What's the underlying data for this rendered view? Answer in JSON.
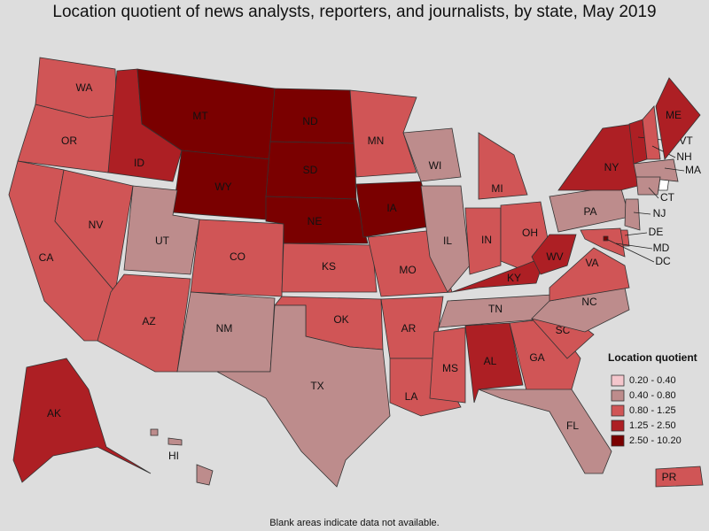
{
  "title": "Location quotient of news analysts, reporters, and journalists, by state, May 2019",
  "legend": {
    "title": "Location quotient",
    "entries": [
      {
        "label": "0.20 - 0.40",
        "color": "#f4c6cc"
      },
      {
        "label": "0.40 - 0.80",
        "color": "#bd8c8c"
      },
      {
        "label": "0.80 - 1.25",
        "color": "#d05556"
      },
      {
        "label": "1.25 - 2.50",
        "color": "#ad1f24"
      },
      {
        "label": "2.50 - 10.20",
        "color": "#7a0000"
      }
    ]
  },
  "states": [
    {
      "label": "WA",
      "color": "#d05556"
    },
    {
      "label": "OR",
      "color": "#d05556"
    },
    {
      "label": "CA",
      "color": "#d05556"
    },
    {
      "label": "NV",
      "color": "#d05556"
    },
    {
      "label": "ID",
      "color": "#ad1f24"
    },
    {
      "label": "MT",
      "color": "#7a0000"
    },
    {
      "label": "WY",
      "color": "#7a0000"
    },
    {
      "label": "UT",
      "color": "#bd8c8c"
    },
    {
      "label": "CO",
      "color": "#d05556"
    },
    {
      "label": "AZ",
      "color": "#d05556"
    },
    {
      "label": "NM",
      "color": "#bd8c8c"
    },
    {
      "label": "ND",
      "color": "#7a0000"
    },
    {
      "label": "SD",
      "color": "#7a0000"
    },
    {
      "label": "NE",
      "color": "#7a0000"
    },
    {
      "label": "KS",
      "color": "#d05556"
    },
    {
      "label": "OK",
      "color": "#d05556"
    },
    {
      "label": "TX",
      "color": "#bd8c8c"
    },
    {
      "label": "MN",
      "color": "#d05556"
    },
    {
      "label": "IA",
      "color": "#7a0000"
    },
    {
      "label": "MO",
      "color": "#d05556"
    },
    {
      "label": "AR",
      "color": "#d05556"
    },
    {
      "label": "LA",
      "color": "#d05556"
    },
    {
      "label": "WI",
      "color": "#bd8c8c"
    },
    {
      "label": "IL",
      "color": "#bd8c8c"
    },
    {
      "label": "MI",
      "color": "#d05556"
    },
    {
      "label": "IN",
      "color": "#d05556"
    },
    {
      "label": "OH",
      "color": "#d05556"
    },
    {
      "label": "KY",
      "color": "#ad1f24"
    },
    {
      "label": "TN",
      "color": "#bd8c8c"
    },
    {
      "label": "MS",
      "color": "#d05556"
    },
    {
      "label": "AL",
      "color": "#ad1f24"
    },
    {
      "label": "GA",
      "color": "#d05556"
    },
    {
      "label": "FL",
      "color": "#bd8c8c"
    },
    {
      "label": "SC",
      "color": "#d05556"
    },
    {
      "label": "NC",
      "color": "#bd8c8c"
    },
    {
      "label": "VA",
      "color": "#d05556"
    },
    {
      "label": "WV",
      "color": "#ad1f24"
    },
    {
      "label": "PA",
      "color": "#bd8c8c"
    },
    {
      "label": "NY",
      "color": "#ad1f24"
    },
    {
      "label": "VT",
      "color": "#ad1f24"
    },
    {
      "label": "NH",
      "color": "#d05556"
    },
    {
      "label": "ME",
      "color": "#ad1f24"
    },
    {
      "label": "MA",
      "color": "#bd8c8c"
    },
    {
      "label": "CT",
      "color": "#bd8c8c"
    },
    {
      "label": "NJ",
      "color": "#bd8c8c"
    },
    {
      "label": "DE",
      "color": "#d05556"
    },
    {
      "label": "MD",
      "color": "#d05556"
    },
    {
      "label": "DC",
      "color": "#7a0000"
    },
    {
      "label": "AK",
      "color": "#ad1f24"
    },
    {
      "label": "HI",
      "color": "#bd8c8c"
    },
    {
      "label": "PR",
      "color": "#d05556"
    }
  ],
  "footnote": "Blank areas indicate data not available."
}
